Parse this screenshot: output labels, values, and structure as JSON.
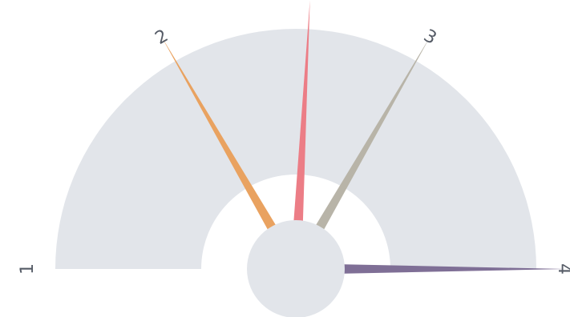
{
  "chart_data": {
    "type": "gauge",
    "scale_labels": [
      "1",
      "2",
      "3",
      "4"
    ],
    "range": [
      1,
      4
    ],
    "band": {
      "from": 1,
      "to": 4,
      "color": "#e2e5ea"
    },
    "hub_color": "#e2e5ea",
    "label_color": "#555b66",
    "series": [
      {
        "value": 2,
        "color": "#e9a260"
      },
      {
        "value": 2.55,
        "color": "#ec7d86"
      },
      {
        "value": 3,
        "color": "#b8b4a8"
      },
      {
        "value": 4,
        "color": "#7f6f96"
      }
    ]
  }
}
